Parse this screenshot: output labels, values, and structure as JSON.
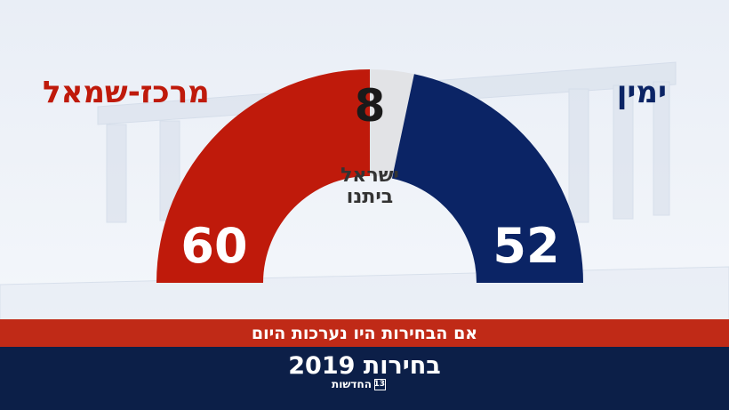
{
  "chart_data": {
    "type": "pie",
    "style": "semicircle-parliament",
    "series": [
      {
        "name": "מרכז-שמאל",
        "value": 60,
        "color": "#bf1a0b"
      },
      {
        "name": "ישראל ביתנו",
        "value": 8,
        "color": "#e2e3e6"
      },
      {
        "name": "ימין",
        "value": 52,
        "color": "#0b2465"
      }
    ],
    "total": 120
  },
  "labels": {
    "left": "מרכז-שמאל",
    "right": "ימין",
    "center_name_line1": "ישראל",
    "center_name_line2": "ביתנו"
  },
  "counts": {
    "left": "60",
    "center": "8",
    "right": "52"
  },
  "colors": {
    "left": "#bf1a0b",
    "right": "#0b2465",
    "band": "#c02a17",
    "footer": "#0c1f48"
  },
  "subtitle": "אם הבחירות היו נערכות היום",
  "footer": {
    "title": "בחירות 2019",
    "logo_text": "החדשות",
    "logo_mark": "13"
  }
}
